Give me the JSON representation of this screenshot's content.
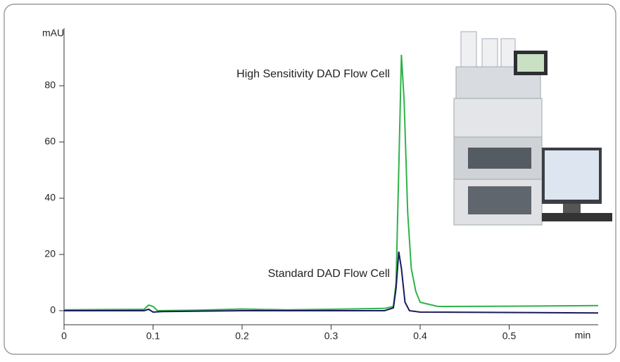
{
  "chart_data": {
    "type": "line",
    "ylabel": "mAU",
    "xlabel": "min",
    "annotations": [
      {
        "text": "High Sensitivity DAD Flow Cell",
        "x": 0.366,
        "y": 84
      },
      {
        "text": "Standard DAD Flow Cell",
        "x": 0.366,
        "y": 13
      }
    ],
    "xlim": [
      0,
      0.6
    ],
    "xticks": [
      0,
      0.1,
      0.2,
      0.3,
      0.4,
      0.5
    ],
    "ylim": [
      -5,
      100
    ],
    "yticks": [
      0,
      20,
      40,
      60,
      80
    ],
    "series": [
      {
        "name": "High Sensitivity DAD Flow Cell",
        "color": "#2fb24a",
        "x": [
          0,
          0.09,
          0.095,
          0.1,
          0.105,
          0.15,
          0.2,
          0.25,
          0.3,
          0.36,
          0.37,
          0.373,
          0.376,
          0.379,
          0.382,
          0.386,
          0.39,
          0.395,
          0.4,
          0.42,
          0.5,
          0.6
        ],
        "values": [
          0.3,
          0.5,
          2,
          1.5,
          0,
          0.2,
          0.6,
          0.3,
          0.5,
          0.8,
          1.5,
          10,
          50,
          91,
          75,
          35,
          15,
          7,
          3,
          1.5,
          1.6,
          1.8
        ]
      },
      {
        "name": "Standard DAD Flow Cell",
        "color": "#1a1a5e",
        "x": [
          0,
          0.09,
          0.095,
          0.1,
          0.11,
          0.2,
          0.3,
          0.36,
          0.37,
          0.373,
          0.376,
          0.379,
          0.383,
          0.388,
          0.4,
          0.6
        ],
        "values": [
          0,
          0,
          0.5,
          -0.5,
          -0.3,
          0,
          0,
          0,
          1,
          8,
          21,
          15,
          3,
          0,
          -0.5,
          -0.8
        ]
      }
    ]
  }
}
